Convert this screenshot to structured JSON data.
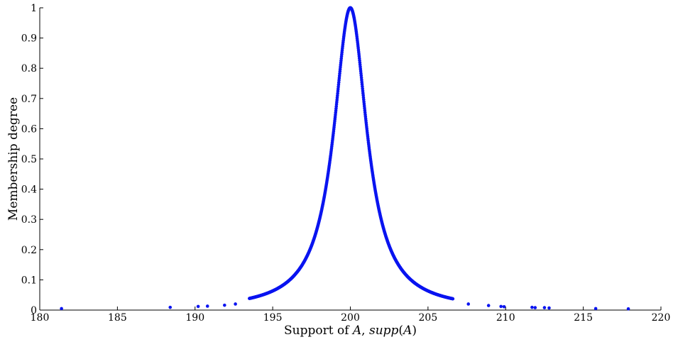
{
  "chart_data": {
    "type": "scatter",
    "xlabel_parts": [
      {
        "text": "Support of ",
        "italic": false
      },
      {
        "text": "A",
        "italic": true
      },
      {
        "text": ", ",
        "italic": false
      },
      {
        "text": "supp",
        "italic": true
      },
      {
        "text": "(",
        "italic": false
      },
      {
        "text": "A",
        "italic": true
      },
      {
        "text": ")",
        "italic": false
      }
    ],
    "ylabel": "Membership degree",
    "xlim": [
      180,
      220
    ],
    "ylim": [
      0,
      1
    ],
    "xticks": [
      "180",
      "185",
      "190",
      "195",
      "200",
      "205",
      "210",
      "215",
      "220"
    ],
    "yticks": [
      "0",
      "0.1",
      "0.2",
      "0.3",
      "0.4",
      "0.5",
      "0.6",
      "0.7",
      "0.8",
      "0.9",
      "1"
    ],
    "grid": false,
    "marker_color": "#0a14f0",
    "curve": {
      "shape": "cauchy",
      "center": 200,
      "half_width_at_half_max": 1.3,
      "x_min": 193.5,
      "x_max": 206.6,
      "n_points": 900
    },
    "points": [
      {
        "x": 181.4,
        "y": 0.005
      },
      {
        "x": 188.4,
        "y": 0.009
      },
      {
        "x": 190.2,
        "y": 0.012
      },
      {
        "x": 190.8,
        "y": 0.013
      },
      {
        "x": 191.9,
        "y": 0.016
      },
      {
        "x": 192.6,
        "y": 0.02
      },
      {
        "x": 207.6,
        "y": 0.02
      },
      {
        "x": 208.9,
        "y": 0.015
      },
      {
        "x": 209.7,
        "y": 0.012
      },
      {
        "x": 209.9,
        "y": 0.011
      },
      {
        "x": 211.7,
        "y": 0.009
      },
      {
        "x": 211.9,
        "y": 0.008
      },
      {
        "x": 212.5,
        "y": 0.008
      },
      {
        "x": 212.8,
        "y": 0.007
      },
      {
        "x": 215.8,
        "y": 0.005
      },
      {
        "x": 217.9,
        "y": 0.004
      }
    ]
  }
}
